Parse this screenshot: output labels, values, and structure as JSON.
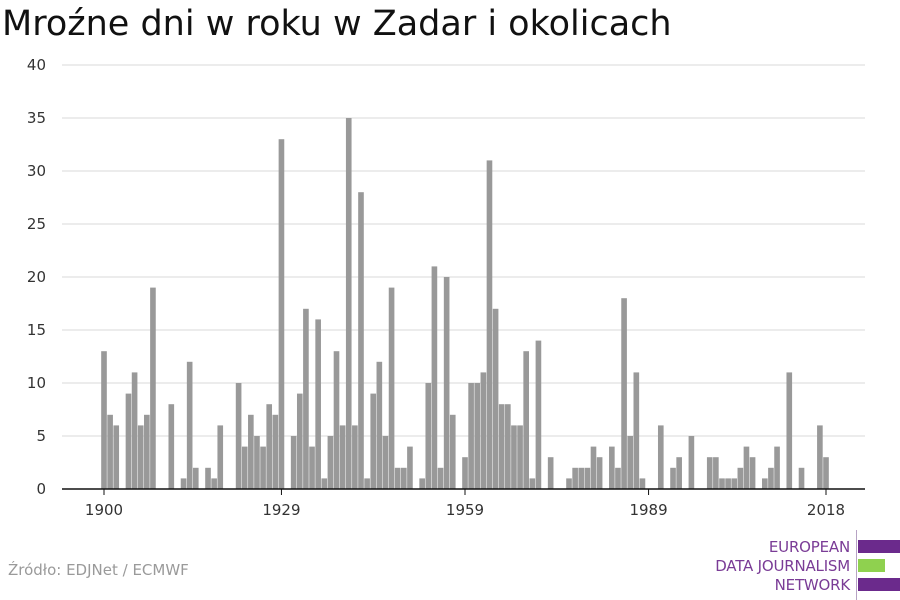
{
  "title": "Mroźne dni w roku w Zadar i okolicach",
  "source": "Źródło: EDJNet / ECMWF",
  "logo": {
    "lines": [
      "EUROPEAN",
      "DATA JOURNALISM",
      "NETWORK"
    ],
    "colors": [
      "#6b2a8c",
      "#8fd14f",
      "#6b2a8c"
    ]
  },
  "colors": {
    "bar": "#999999",
    "grid": "#d9d9d9",
    "axis": "#111111",
    "text": "#333333"
  },
  "chart_data": {
    "type": "bar",
    "title": "Mroźne dni w roku w Zadar i okolicach",
    "xlabel": "",
    "ylabel": "",
    "ylim": [
      0,
      40
    ],
    "yticks": [
      0,
      5,
      10,
      15,
      20,
      25,
      30,
      35,
      40
    ],
    "xticks": [
      1900,
      1929,
      1959,
      1989,
      2018
    ],
    "xlim": [
      1900,
      2018
    ],
    "grid": true,
    "legend": "none",
    "x": [
      1900,
      1901,
      1902,
      1903,
      1904,
      1905,
      1906,
      1907,
      1908,
      1909,
      1910,
      1911,
      1912,
      1913,
      1914,
      1915,
      1916,
      1917,
      1918,
      1919,
      1920,
      1921,
      1922,
      1923,
      1924,
      1925,
      1926,
      1927,
      1928,
      1929,
      1930,
      1931,
      1932,
      1933,
      1934,
      1935,
      1936,
      1937,
      1938,
      1939,
      1940,
      1941,
      1942,
      1943,
      1944,
      1945,
      1946,
      1947,
      1948,
      1949,
      1950,
      1951,
      1952,
      1953,
      1954,
      1955,
      1956,
      1957,
      1958,
      1959,
      1960,
      1961,
      1962,
      1963,
      1964,
      1965,
      1966,
      1967,
      1968,
      1969,
      1970,
      1971,
      1972,
      1973,
      1974,
      1975,
      1976,
      1977,
      1978,
      1979,
      1980,
      1981,
      1982,
      1983,
      1984,
      1985,
      1986,
      1987,
      1988,
      1989,
      1990,
      1991,
      1992,
      1993,
      1994,
      1995,
      1996,
      1997,
      1998,
      1999,
      2000,
      2001,
      2002,
      2003,
      2004,
      2005,
      2006,
      2007,
      2008,
      2009,
      2010,
      2011,
      2012,
      2013,
      2014,
      2015,
      2016,
      2017,
      2018
    ],
    "values": [
      13,
      7,
      6,
      0,
      9,
      11,
      6,
      7,
      19,
      0,
      0,
      8,
      0,
      1,
      12,
      2,
      0,
      2,
      1,
      6,
      0,
      0,
      10,
      4,
      7,
      5,
      4,
      8,
      7,
      33,
      0,
      5,
      9,
      17,
      4,
      16,
      1,
      5,
      13,
      6,
      35,
      6,
      28,
      1,
      9,
      12,
      5,
      19,
      2,
      2,
      4,
      0,
      1,
      10,
      21,
      2,
      20,
      7,
      0,
      3,
      10,
      10,
      11,
      31,
      17,
      8,
      8,
      6,
      6,
      13,
      1,
      14,
      0,
      3,
      0,
      0,
      1,
      2,
      2,
      2,
      4,
      3,
      0,
      4,
      2,
      18,
      5,
      11,
      1,
      0,
      0,
      6,
      0,
      2,
      3,
      0,
      5,
      0,
      0,
      3,
      3,
      1,
      1,
      1,
      2,
      4,
      3,
      0,
      1,
      2,
      4,
      0,
      11,
      0,
      2,
      0,
      0,
      6,
      3
    ]
  }
}
